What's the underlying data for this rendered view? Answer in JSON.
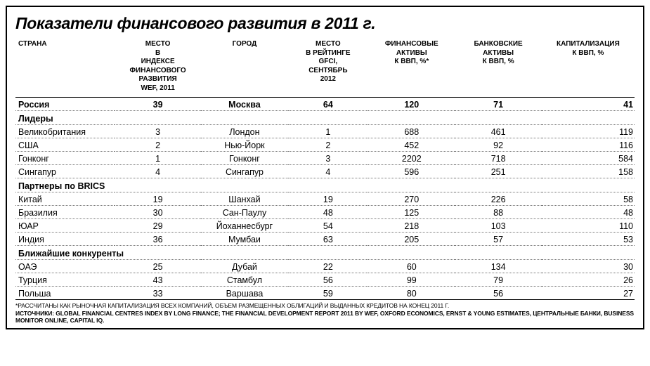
{
  "title": "Показатели финансового развития в 2011 г.",
  "columns": [
    "СТРАНА",
    "МЕСТО\nВ\nИНДЕКСЕ\nФИНАНСОВОГО\nРАЗВИТИЯ\nWEF, 2011",
    "ГОРОД",
    "МЕСТО\nВ РЕЙТИНГЕ\nGFCI,\nСЕНТЯБРЬ\n2012",
    "ФИНАНСОВЫЕ\nАКТИВЫ\nК ВВП, %*",
    "БАНКОВСКИЕ\nАКТИВЫ\nК ВВП, %",
    "КАПИТАЛИЗАЦИЯ\nК ВВП, %"
  ],
  "highlight": {
    "country": "Россия",
    "wef": "39",
    "city": "Москва",
    "gfci": "64",
    "fin": "120",
    "bank": "71",
    "cap": "41"
  },
  "sections": [
    {
      "label": "Лидеры",
      "rows": [
        {
          "country": "Великобритания",
          "wef": "3",
          "city": "Лондон",
          "gfci": "1",
          "fin": "688",
          "bank": "461",
          "cap": "119"
        },
        {
          "country": "США",
          "wef": "2",
          "city": "Нью-Йорк",
          "gfci": "2",
          "fin": "452",
          "bank": "92",
          "cap": "116"
        },
        {
          "country": "Гонконг",
          "wef": "1",
          "city": "Гонконг",
          "gfci": "3",
          "fin": "2202",
          "bank": "718",
          "cap": "584"
        },
        {
          "country": "Сингапур",
          "wef": "4",
          "city": "Сингапур",
          "gfci": "4",
          "fin": "596",
          "bank": "251",
          "cap": "158"
        }
      ]
    },
    {
      "label": "Партнеры по BRICS",
      "rows": [
        {
          "country": "Китай",
          "wef": "19",
          "city": "Шанхай",
          "gfci": "19",
          "fin": "270",
          "bank": "226",
          "cap": "58"
        },
        {
          "country": "Бразилия",
          "wef": "30",
          "city": "Сан-Паулу",
          "gfci": "48",
          "fin": "125",
          "bank": "88",
          "cap": "48"
        },
        {
          "country": "ЮАР",
          "wef": "29",
          "city": "Йоханнесбург",
          "gfci": "54",
          "fin": "218",
          "bank": "103",
          "cap": "110"
        },
        {
          "country": "Индия",
          "wef": "36",
          "city": "Мумбаи",
          "gfci": "63",
          "fin": "205",
          "bank": "57",
          "cap": "53"
        }
      ]
    },
    {
      "label": "Ближайшие конкуренты",
      "rows": [
        {
          "country": "ОАЭ",
          "wef": "25",
          "city": "Дубай",
          "gfci": "22",
          "fin": "60",
          "bank": "134",
          "cap": "30"
        },
        {
          "country": "Турция",
          "wef": "43",
          "city": "Стамбул",
          "gfci": "56",
          "fin": "99",
          "bank": "79",
          "cap": "26"
        },
        {
          "country": "Польша",
          "wef": "33",
          "city": "Варшава",
          "gfci": "59",
          "fin": "80",
          "bank": "56",
          "cap": "27"
        }
      ]
    }
  ],
  "footnote": "*РАССЧИТАНЫ КАК РЫНОЧНАЯ КАПИТАЛИЗАЦИЯ ВСЕХ КОМПАНИЙ, ОБЪЕМ РАЗМЕЩЕННЫХ ОБЛИГАЦИЙ И ВЫДАННЫХ КРЕДИТОВ НА КОНЕЦ 2011 Г.",
  "sources": "ИСТОЧНИКИ: GLOBAL FINANCIAL CENTRES INDEX BY LONG FINANCE; THE FINANCIAL DEVELOPMENT REPORT 2011 BY WEF, OXFORD ECONOMICS, ERNST & YOUNG ESTIMATES, ЦЕНТРАЛЬНЫЕ БАНКИ, BUSINESS MONITOR ONLINE, CAPITAL IQ."
}
